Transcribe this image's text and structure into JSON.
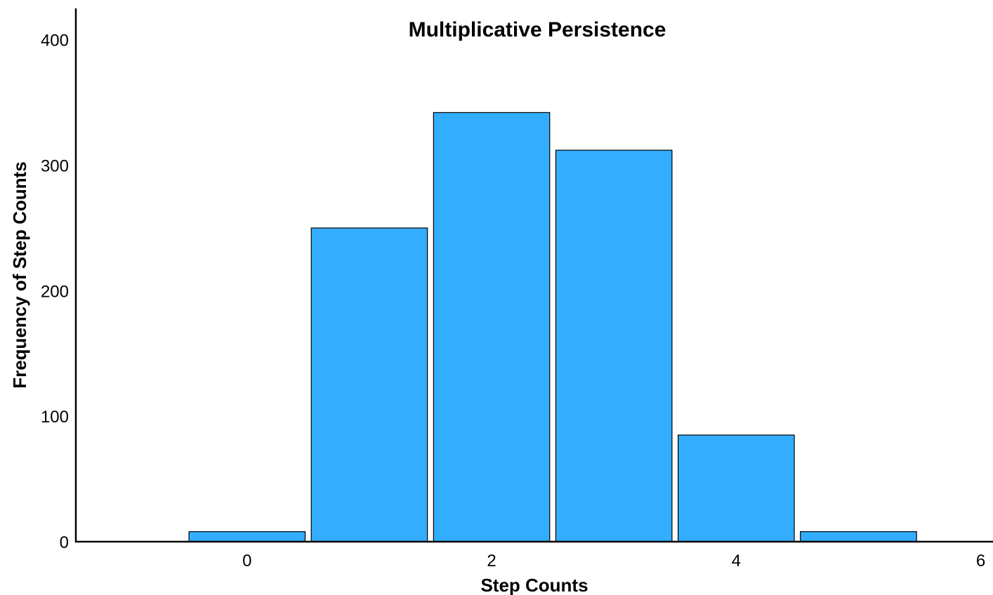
{
  "chart_data": {
    "type": "bar",
    "title": "Multiplicative Persistence",
    "xlabel": "Step Counts",
    "ylabel": "Frequency of Step Counts",
    "x": [
      0,
      1,
      2,
      3,
      4,
      5
    ],
    "values": [
      8,
      250,
      342,
      312,
      85,
      8
    ],
    "bar_width": 0.95,
    "xlim": [
      -1.4,
      6.1
    ],
    "ylim": [
      0,
      425
    ],
    "x_ticks": [
      0,
      2,
      4,
      6
    ],
    "y_ticks": [
      0,
      100,
      200,
      300,
      400
    ],
    "grid": false,
    "legend": "none",
    "colors": {
      "bar_fill": "#33adff",
      "bar_edge": "#000000",
      "axis": "#000000",
      "text": "#000000"
    }
  }
}
